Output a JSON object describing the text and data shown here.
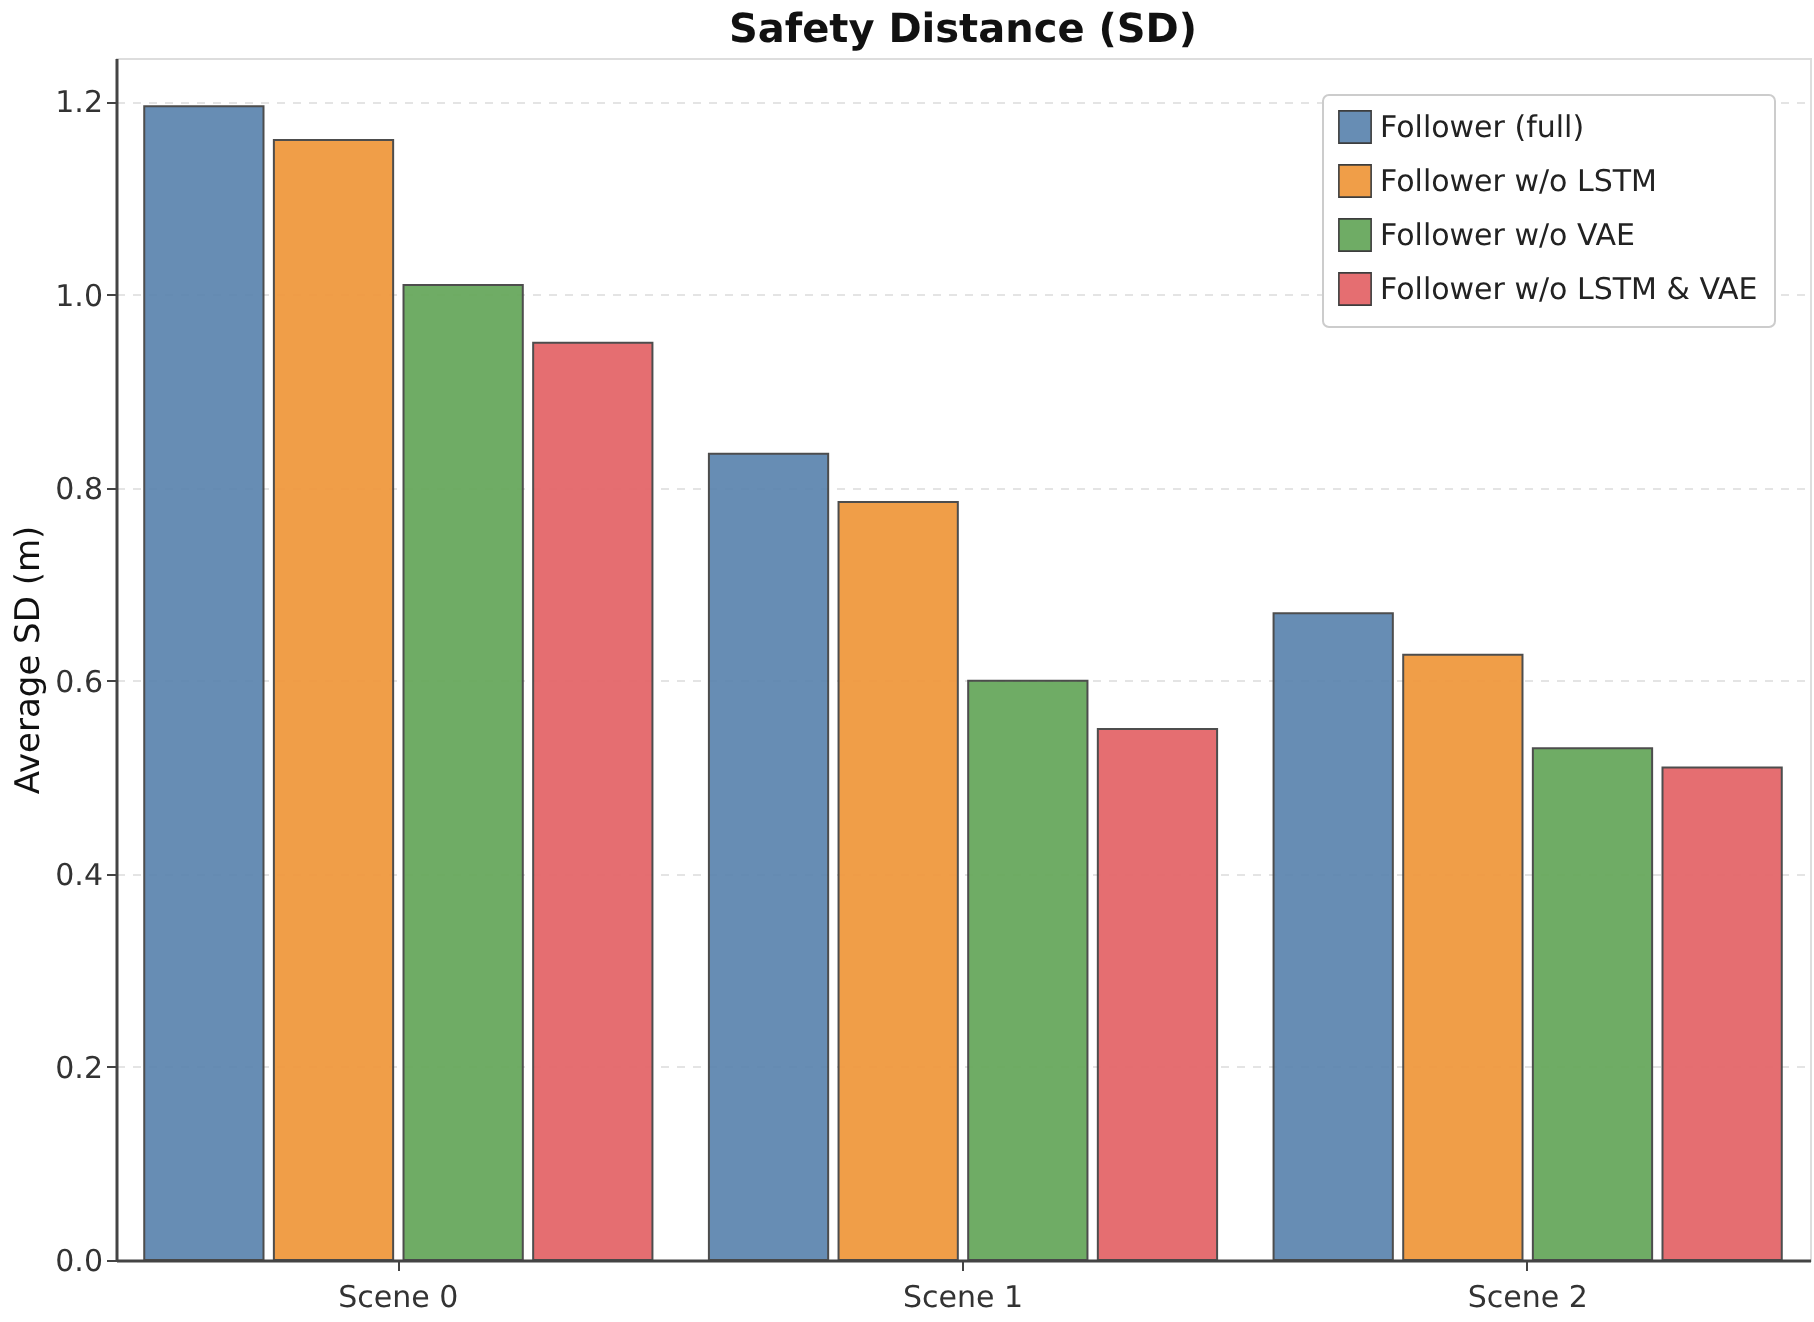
{
  "chart_data": {
    "type": "bar",
    "title": "Safety Distance (SD)",
    "ylabel": "Average SD (m)",
    "categories": [
      "Scene 0",
      "Scene 1",
      "Scene 2"
    ],
    "series": [
      {
        "name": "Follower (full)",
        "color": "#5f87b0",
        "values": [
          1.195,
          0.835,
          0.67
        ]
      },
      {
        "name": "Follower w/o LSTM",
        "color": "#f0993f",
        "values": [
          1.16,
          0.785,
          0.627
        ]
      },
      {
        "name": "Follower w/o VAE",
        "color": "#68a85d",
        "values": [
          1.01,
          0.6,
          0.53
        ]
      },
      {
        "name": "Follower w/o LSTM & VAE",
        "color": "#e4676a",
        "values": [
          0.95,
          0.55,
          0.51
        ]
      }
    ],
    "ylim": [
      0,
      1.245
    ],
    "yticks": [
      {
        "value": 0,
        "label": "0.0"
      },
      0.2,
      0.4,
      0.6,
      0.8,
      {
        "value": 1,
        "label": "1.0"
      },
      1.2
    ],
    "grid": "y",
    "legend": "top right"
  }
}
